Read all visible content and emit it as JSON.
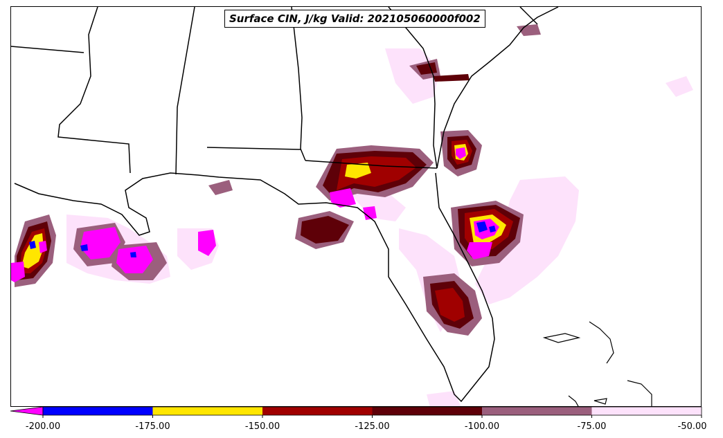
{
  "title": "Surface CIN, J/kg Valid: 202105060000f002",
  "legend": {
    "ticks": [
      "-200.00",
      "-175.00",
      "-150.00",
      "-125.00",
      "-100.00",
      "-75.00",
      "-50.00"
    ],
    "bins": [
      {
        "range": "< -200",
        "color": "#ff00ff"
      },
      {
        "range": "-200 to -175",
        "color": "#0000ff"
      },
      {
        "range": "-175 to -150",
        "color": "#ffe600"
      },
      {
        "range": "-150 to -125",
        "color": "#a00000"
      },
      {
        "range": "-125 to -100",
        "color": "#5e0008"
      },
      {
        "range": "-100 to -75",
        "color": "#9b5f7d"
      },
      {
        "range": "-75 to -50",
        "color": "#fde2fb"
      }
    ]
  }
}
